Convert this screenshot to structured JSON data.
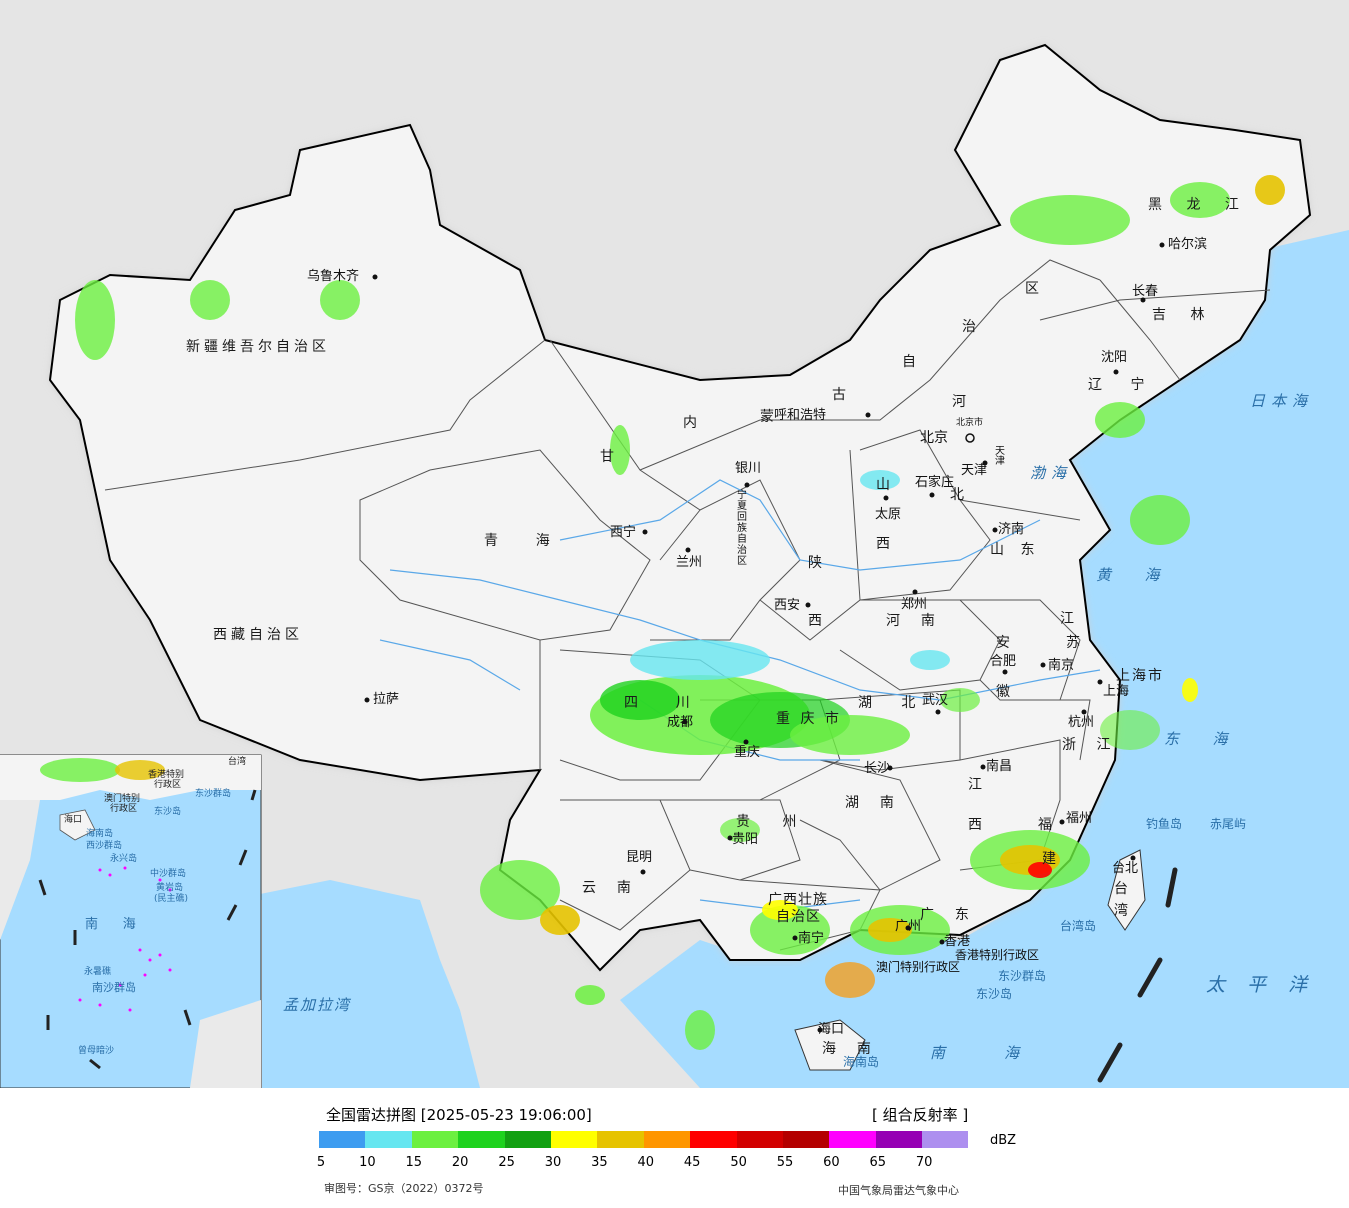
{
  "map": {
    "province_labels": [
      {
        "id": "xinjiang",
        "text": "新疆维吾尔自治区"
      },
      {
        "id": "xizang",
        "text": "西藏自治区"
      },
      {
        "id": "qinghai",
        "text": "青    海"
      },
      {
        "id": "gansu",
        "text": "甘"
      },
      {
        "id": "neimenggu-1",
        "text": "内"
      },
      {
        "id": "neimenggu-2",
        "text": "蒙"
      },
      {
        "id": "neimenggu-3",
        "text": "古"
      },
      {
        "id": "neimenggu-4",
        "text": "自"
      },
      {
        "id": "neimenggu-5",
        "text": "治"
      },
      {
        "id": "neimenggu-6",
        "text": "区"
      },
      {
        "id": "heilongjiang",
        "text": "黑 龙 江"
      },
      {
        "id": "jilin",
        "text": "吉 林"
      },
      {
        "id": "liaoning",
        "text": "辽 宁"
      },
      {
        "id": "hebei-1",
        "text": "河"
      },
      {
        "id": "hebei-2",
        "text": "北"
      },
      {
        "id": "shanxi-1",
        "text": "山"
      },
      {
        "id": "shanxi-2",
        "text": "西"
      },
      {
        "id": "shandong",
        "text": "山 东"
      },
      {
        "id": "shaanxi-1",
        "text": "陕"
      },
      {
        "id": "shaanxi-2",
        "text": "西"
      },
      {
        "id": "henan",
        "text": "河  南"
      },
      {
        "id": "jiangsu-1",
        "text": "江"
      },
      {
        "id": "jiangsu-2",
        "text": "苏"
      },
      {
        "id": "anhui-1",
        "text": "安"
      },
      {
        "id": "anhui-2",
        "text": "徽"
      },
      {
        "id": "sichuan",
        "text": "四    川"
      },
      {
        "id": "chongqing",
        "text": "重 庆 市"
      },
      {
        "id": "hubei",
        "text": "湖   北"
      },
      {
        "id": "zhejiang",
        "text": "浙 江"
      },
      {
        "id": "jiangxi-1",
        "text": "江"
      },
      {
        "id": "jiangxi-2",
        "text": "西"
      },
      {
        "id": "hunan",
        "text": "湖  南"
      },
      {
        "id": "guizhou",
        "text": "贵 州"
      },
      {
        "id": "yunnan",
        "text": "云  南"
      },
      {
        "id": "guangxi-1",
        "text": "广西壮族"
      },
      {
        "id": "guangxi-2",
        "text": "自治区"
      },
      {
        "id": "guangdong",
        "text": "广  东"
      },
      {
        "id": "fujian-1",
        "text": "福"
      },
      {
        "id": "fujian-2",
        "text": "建"
      },
      {
        "id": "taiwan-1",
        "text": "台"
      },
      {
        "id": "taiwan-2",
        "text": "湾"
      },
      {
        "id": "hainan",
        "text": "海  南"
      },
      {
        "id": "ningxia",
        "text": "宁夏回族自治区"
      },
      {
        "id": "shanghai",
        "text": "上海市"
      },
      {
        "id": "hongkong",
        "text": "香港特别行政区"
      },
      {
        "id": "macau",
        "text": "澳门特别行政区"
      },
      {
        "id": "ningxia-city",
        "text": "银川"
      }
    ],
    "cities": [
      {
        "id": "urumqi",
        "text": "乌鲁木齐"
      },
      {
        "id": "lhasa",
        "text": "拉萨"
      },
      {
        "id": "xining",
        "text": "西宁"
      },
      {
        "id": "lanzhou",
        "text": "兰州"
      },
      {
        "id": "hohhot",
        "text": "呼和浩特"
      },
      {
        "id": "harbin",
        "text": "哈尔滨"
      },
      {
        "id": "changchun",
        "text": "长春"
      },
      {
        "id": "shenyang",
        "text": "沈阳"
      },
      {
        "id": "beijing",
        "text": "北京"
      },
      {
        "id": "beijing-city",
        "text": "北京市"
      },
      {
        "id": "tianjin",
        "text": "天津"
      },
      {
        "id": "tianjin-city",
        "text": "天津"
      },
      {
        "id": "shijiazhuang",
        "text": "石家庄"
      },
      {
        "id": "taiyuan",
        "text": "太原"
      },
      {
        "id": "jinan",
        "text": "济南"
      },
      {
        "id": "zhengzhou",
        "text": "郑州"
      },
      {
        "id": "xian",
        "text": "西安"
      },
      {
        "id": "hefei",
        "text": "合肥"
      },
      {
        "id": "nanjing",
        "text": "南京"
      },
      {
        "id": "shanghai",
        "text": "上海"
      },
      {
        "id": "hangzhou",
        "text": "杭州"
      },
      {
        "id": "wuhan",
        "text": "武汉"
      },
      {
        "id": "chengdu",
        "text": "成都"
      },
      {
        "id": "chongqing",
        "text": "重庆"
      },
      {
        "id": "changsha",
        "text": "长沙"
      },
      {
        "id": "nanchang",
        "text": "南昌"
      },
      {
        "id": "fuzhou",
        "text": "福州"
      },
      {
        "id": "guiyang",
        "text": "贵阳"
      },
      {
        "id": "kunming",
        "text": "昆明"
      },
      {
        "id": "nanning",
        "text": "南宁"
      },
      {
        "id": "guangzhou",
        "text": "广州"
      },
      {
        "id": "hk",
        "text": "香港"
      },
      {
        "id": "taipei",
        "text": "台北"
      },
      {
        "id": "haikou",
        "text": "海口"
      }
    ],
    "seas": [
      {
        "id": "japan-sea",
        "text": "日本海"
      },
      {
        "id": "bohai",
        "text": "渤海"
      },
      {
        "id": "yellow-sea",
        "text": "黄  海"
      },
      {
        "id": "east-sea",
        "text": "东  海"
      },
      {
        "id": "pacific",
        "text": "太 平 洋"
      },
      {
        "id": "south-sea",
        "text": "南    海"
      },
      {
        "id": "bengal",
        "text": "孟加拉湾"
      }
    ],
    "islands": [
      {
        "id": "diaoyu",
        "text": "钓鱼岛"
      },
      {
        "id": "chiwei",
        "text": "赤尾屿"
      },
      {
        "id": "taiwan-island",
        "text": "台湾岛"
      },
      {
        "id": "dongsha-qd",
        "text": "东沙群岛"
      },
      {
        "id": "dongsha-d",
        "text": "东沙岛"
      },
      {
        "id": "hainan-island",
        "text": "海南岛"
      }
    ],
    "inset_labels": [
      {
        "id": "inset-hk",
        "text": "香港特别"
      },
      {
        "id": "inset-hk2",
        "text": "行政区"
      },
      {
        "id": "inset-mo",
        "text": "澳门特别"
      },
      {
        "id": "inset-mo2",
        "text": "行政区"
      },
      {
        "id": "inset-dongsha",
        "text": "东沙群岛"
      },
      {
        "id": "inset-dongsha2",
        "text": "东沙岛"
      },
      {
        "id": "inset-haikou",
        "text": "海口"
      },
      {
        "id": "inset-hainan",
        "text": "海南岛"
      },
      {
        "id": "inset-xisha",
        "text": "西沙群岛"
      },
      {
        "id": "inset-yongxing",
        "text": "永兴岛"
      },
      {
        "id": "inset-zhongsha",
        "text": "中沙群岛"
      },
      {
        "id": "inset-huangyan",
        "text": "黄岩岛"
      },
      {
        "id": "inset-huangyan2",
        "text": "(民主礁)"
      },
      {
        "id": "inset-southsea",
        "text": "南      海"
      },
      {
        "id": "inset-yongshu",
        "text": "永暑礁"
      },
      {
        "id": "inset-nansha",
        "text": "南沙群岛"
      },
      {
        "id": "inset-zengmu",
        "text": "曾母暗沙"
      },
      {
        "id": "inset-taiwan",
        "text": "台湾"
      }
    ]
  },
  "legend": {
    "title": "全国雷达拼图 [2025-05-23 19:06:00]",
    "product": "[ 组合反射率 ]",
    "unit": "dBZ",
    "colors": [
      "#3d9cf0",
      "#66e6f0",
      "#6cf040",
      "#1ed21e",
      "#12a012",
      "#ffff00",
      "#e6c300",
      "#ff9600",
      "#ff0000",
      "#d20000",
      "#b40000",
      "#ff00ff",
      "#9600b4",
      "#ad8fef"
    ],
    "ticks": [
      "5",
      "10",
      "15",
      "20",
      "25",
      "30",
      "35",
      "40",
      "45",
      "50",
      "55",
      "60",
      "65",
      "70"
    ],
    "approval": "审图号：GS京（2022）0372号",
    "source": "中国气象局雷达气象中心"
  }
}
